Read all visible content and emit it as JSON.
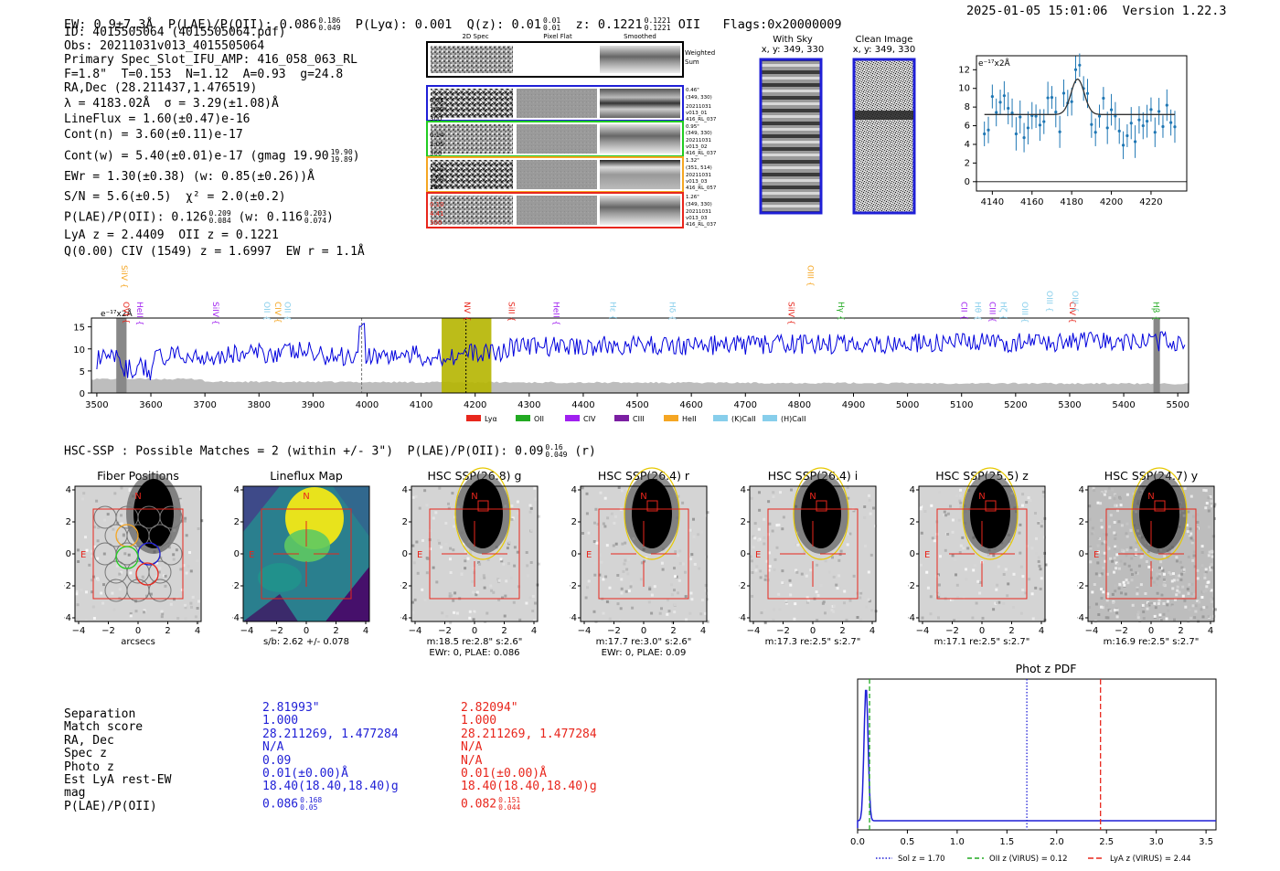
{
  "header": {
    "ew": "EW: 0.9±7.3Å",
    "plae_label": "P(LAE)/P(OII): 0.086",
    "plae_hi": "0.186",
    "plae_lo": "0.049",
    "plya": "P(Lyα): 0.001",
    "qz_label": "Q(z): 0.01",
    "qz_hi": "0.01",
    "qz_lo": "0.01",
    "z_label": "z: 0.1221",
    "z_hi": "0.1221",
    "z_lo": "0.1221",
    "z_line": "OII",
    "flags": "Flags:0x20000009",
    "timestamp": "2025-01-05 15:01:06",
    "version": "Version 1.22.3"
  },
  "info": {
    "id": "ID: 4015505064 (4015505064.pdf)",
    "obs": "Obs: 20211031v013_4015505064",
    "primary": "Primary Spec_Slot_IFU_AMP: 416_058_063_RL",
    "fstat": "F=1.8\"  T=0.153  N=1.12  A=0.93  g=24.8",
    "radec": "RA,Dec (28.211437,1.476519)",
    "lambda": "λ = 4183.02Å  σ = 3.29(±1.08)Å",
    "lineflux": "LineFlux = 1.60(±0.47)e-16",
    "contn": "Cont(n) = 3.60(±0.11)e-17",
    "contw": "Cont(w) = 5.40(±0.01)e-17 (gmag 19.90",
    "contw_hi": "19.90",
    "contw_lo": "19.89",
    "ewr": "EWr = 1.30(±0.38) (w: 0.85(±0.26))Å",
    "sn": "S/N = 5.6(±0.5)  χ² = 2.0(±0.2)",
    "plae": "P(LAE)/P(OII): 0.126",
    "plae_hi": "0.209",
    "plae_lo": "0.084",
    "plae_w": "(w: 0.116",
    "plae_w_hi": "0.203",
    "plae_w_lo": "0.074",
    "lya": "LyA z = 2.4409  OII z = 0.1221",
    "civ": "Q(0.00) CIV (1549) z = 1.6997  EW r = 1.1Å"
  },
  "cutouts": {
    "col_titles": [
      "2D Spec",
      "Pixel Flat",
      "Smoothed"
    ],
    "weighted_sum": "Weighted Sum",
    "rows": [
      {
        "left": [
          "0.31",
          "1.50",
          "300"
        ],
        "right": [
          "0.46\"",
          "(349, 330)",
          "20211031",
          "v013_01",
          "416_RL_037"
        ],
        "color": "#1f1fd6",
        "left_color": "#000"
      },
      {
        "left": [
          "0.14",
          "2.05",
          "300"
        ],
        "right": [
          "0.95\"",
          "(349, 330)",
          "20211031",
          "v013_02",
          "416_RL_037"
        ],
        "color": "#22cc22",
        "left_color": "#000"
      },
      {
        "left": [
          "0.12",
          "2.60",
          "280"
        ],
        "right": [
          "1.32\"",
          "(351, 514)",
          "20211031",
          "v013_03",
          "416_RL_057"
        ],
        "color": "#f5a623",
        "left_color": "#000"
      },
      {
        "left": [
          "0.10",
          "4.41",
          "300"
        ],
        "right": [
          "1.26\"",
          "(349, 330)",
          "20211031",
          "v013_03",
          "416_RL_037"
        ],
        "color": "#e8261c",
        "left_color": "#e8261c"
      }
    ],
    "with_sky_title": "With Sky",
    "with_sky_coord": "x, y: 349, 330",
    "clean_title": "Clean Image",
    "clean_coord": "x, y: 349, 330"
  },
  "zoom_spec": {
    "unit": "e⁻¹⁷x2Å",
    "x_ticks": [
      4140,
      4160,
      4180,
      4200,
      4220
    ],
    "y_ticks": [
      0,
      2,
      4,
      6,
      8,
      10,
      12
    ],
    "xlim": [
      4132,
      4238
    ],
    "ylim": [
      -1,
      13.5
    ]
  },
  "full_spec": {
    "unit": "e⁻¹⁷x2Å",
    "x_ticks": [
      3500,
      3600,
      3700,
      3800,
      3900,
      4000,
      4100,
      4200,
      4300,
      4400,
      4500,
      4600,
      4700,
      4800,
      4900,
      5000,
      5100,
      5200,
      5300,
      5400,
      5500
    ],
    "y_ticks": [
      0,
      5,
      10,
      15
    ],
    "xlim": [
      3490,
      5520
    ],
    "ylim": [
      0,
      17
    ],
    "lines": [
      {
        "name": "SiIV",
        "x": 3546,
        "color": "#f5a623",
        "row": 0
      },
      {
        "name": "OVI",
        "x": 3549,
        "color": "#e8261c",
        "row": 2
      },
      {
        "name": "HeII",
        "x": 3575,
        "color": "#a020f0",
        "row": 2
      },
      {
        "name": "SiIV",
        "x": 3715,
        "color": "#a020f0",
        "row": 2
      },
      {
        "name": "OII",
        "x": 3810,
        "color": "#87ceeb",
        "row": 2
      },
      {
        "name": "CIV",
        "x": 3830,
        "color": "#f5a623",
        "row": 2
      },
      {
        "name": "OII",
        "x": 3848,
        "color": "#87ceeb",
        "row": 2
      },
      {
        "name": "NV",
        "x": 4180,
        "color": "#e8261c",
        "row": 2
      },
      {
        "name": "SiII",
        "x": 4262,
        "color": "#e8261c",
        "row": 2
      },
      {
        "name": "HeII",
        "x": 4345,
        "color": "#a020f0",
        "row": 2
      },
      {
        "name": "Hε",
        "x": 4450,
        "color": "#87ceeb",
        "row": 2
      },
      {
        "name": "Hδ",
        "x": 4560,
        "color": "#87ceeb",
        "row": 2
      },
      {
        "name": "SiIV",
        "x": 4780,
        "color": "#e8261c",
        "row": 2
      },
      {
        "name": "OIII",
        "x": 4815,
        "color": "#f5a623",
        "row": 0
      },
      {
        "name": "Hγ",
        "x": 4872,
        "color": "#22aa22",
        "row": 2
      },
      {
        "name": "CII",
        "x": 5100,
        "color": "#a020f0",
        "row": 2
      },
      {
        "name": "Hθ",
        "x": 5125,
        "color": "#87ceeb",
        "row": 2
      },
      {
        "name": "CIII",
        "x": 5152,
        "color": "#a020f0",
        "row": 2
      },
      {
        "name": "Hζ",
        "x": 5172,
        "color": "#87ceeb",
        "row": 2
      },
      {
        "name": "OIII",
        "x": 5212,
        "color": "#87ceeb",
        "row": 2
      },
      {
        "name": "OIII",
        "x": 5258,
        "color": "#87ceeb",
        "row": 1
      },
      {
        "name": "CIV",
        "x": 5300,
        "color": "#e8261c",
        "row": 2
      },
      {
        "name": "OIII",
        "x": 5305,
        "color": "#87ceeb",
        "row": 1
      },
      {
        "name": "Hβ",
        "x": 5455,
        "color": "#22aa22",
        "row": 2
      }
    ],
    "legend": [
      {
        "name": "Lyα",
        "color": "#e8261c"
      },
      {
        "name": "OII",
        "color": "#22aa22"
      },
      {
        "name": "CIV",
        "color": "#a020f0"
      },
      {
        "name": "CIII",
        "color": "#7b1fa2"
      },
      {
        "name": "HeII",
        "color": "#f5a623"
      },
      {
        "name": "(K)CaII",
        "color": "#87ceeb"
      },
      {
        "name": "(H)CaII",
        "color": "#87ceeb"
      }
    ]
  },
  "hsc": {
    "headline_a": "HSC-SSP : Possible Matches = 2 (within +/- 3\")  P(LAE)/P(OII): 0.09",
    "headline_hi": "0.16",
    "headline_lo": "0.049",
    "headline_b": "(r)",
    "panels": [
      {
        "title": "Fiber Positions",
        "sub1": "arcsecs",
        "sub2": ""
      },
      {
        "title": "Lineflux Map",
        "sub1": "s/b: 2.62 +/- 0.078",
        "sub2": ""
      },
      {
        "title": "HSC SSP(26.8) g",
        "sub1": "m:18.5   re:2.8\"   s:2.6\"",
        "sub2": "EWr: 0, PLAE: 0.086"
      },
      {
        "title": "HSC SSP(26.4) r",
        "sub1": "m:17.7   re:3.0\"   s:2.6\"",
        "sub2": "EWr: 0, PLAE: 0.09"
      },
      {
        "title": "HSC SSP(26.4) i",
        "sub1": "m:17.3   re:2.5\"   s:2.7\"",
        "sub2": ""
      },
      {
        "title": "HSC SSP(25.5) z",
        "sub1": "m:17.1   re:2.5\"   s:2.7\"",
        "sub2": ""
      },
      {
        "title": "HSC SSP(24.7) y",
        "sub1": "m:16.9   re:2.5\"   s:2.7\"",
        "sub2": ""
      }
    ],
    "axis_ticks": [
      "-4",
      "-2",
      "0",
      "2",
      "4"
    ],
    "compass_n": "N",
    "compass_e": "E"
  },
  "comparison": {
    "labels": [
      "Separation",
      "Match score",
      "RA, Dec",
      "Spec z",
      "Photo z",
      "Est LyA rest-EW",
      "mag",
      "P(LAE)/P(OII)"
    ],
    "col1": [
      "2.81993\"",
      "1.000",
      "28.211269, 1.477284",
      "N/A",
      "0.09",
      "0.01(±0.00)Å",
      "18.40(18.40,18.40)g",
      "0.086"
    ],
    "col1_plae_hi": "0.168",
    "col1_plae_lo": "0.05",
    "col2": [
      "2.82094\"",
      "1.000",
      "28.211269, 1.477284",
      "N/A",
      "N/A",
      "0.01(±0.00)Å",
      "18.40(18.40,18.40)g",
      "0.082"
    ],
    "col2_plae_hi": "0.151",
    "col2_plae_lo": "0.044"
  },
  "photz": {
    "title": "Phot z PDF",
    "x_ticks": [
      "0.0",
      "0.5",
      "1.0",
      "1.5",
      "2.0",
      "2.5",
      "3.0",
      "3.5"
    ],
    "xlim": [
      0,
      3.6
    ],
    "sol_z": 1.7,
    "oii_z": 0.12,
    "lya_z": 2.44,
    "legend": [
      {
        "label": "Sol z = 1.70",
        "color": "#1f1fd6"
      },
      {
        "label": "OII z (VIRUS) = 0.12",
        "color": "#22aa22"
      },
      {
        "label": "LyA z (VIRUS) = 2.44",
        "color": "#e8261c"
      }
    ]
  }
}
